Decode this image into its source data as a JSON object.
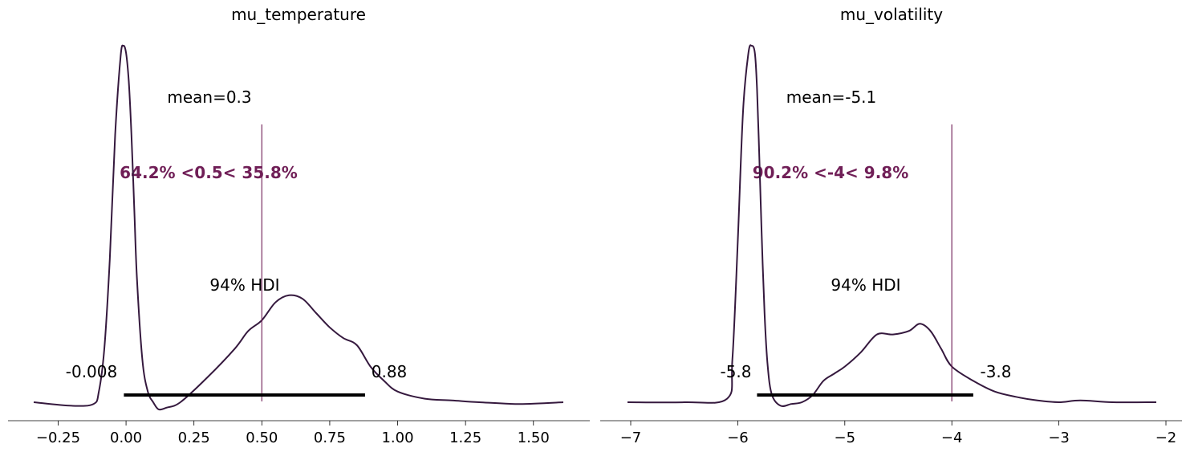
{
  "chart_data": [
    {
      "type": "line",
      "title": "mu_temperature",
      "xlim": [
        -0.34,
        1.61
      ],
      "ylim": [
        0,
        1
      ],
      "xticks": [
        -0.25,
        0.0,
        0.25,
        0.5,
        0.75,
        1.0,
        1.25,
        1.5
      ],
      "xtick_labels": [
        "−0.25",
        "0.00",
        "0.25",
        "0.50",
        "0.75",
        "1.00",
        "1.25",
        "1.50"
      ],
      "grid": false,
      "series": [
        {
          "x": [
            -0.34,
            -0.2,
            -0.12,
            -0.1,
            -0.08,
            -0.06,
            -0.04,
            -0.02,
            -0.01,
            0.0,
            0.01,
            0.02,
            0.03,
            0.04,
            0.06,
            0.08,
            0.1,
            0.12,
            0.15,
            0.2,
            0.3,
            0.4,
            0.45,
            0.5,
            0.55,
            0.6,
            0.65,
            0.7,
            0.75,
            0.8,
            0.85,
            0.9,
            0.95,
            1.0,
            1.1,
            1.2,
            1.3,
            1.45,
            1.61
          ],
          "y": [
            0.0,
            -0.01,
            -0.005,
            0.03,
            0.15,
            0.4,
            0.75,
            0.97,
            1.0,
            0.98,
            0.9,
            0.75,
            0.55,
            0.35,
            0.12,
            0.03,
            0.0,
            -0.02,
            -0.015,
            0.0,
            0.07,
            0.15,
            0.2,
            0.23,
            0.28,
            0.3,
            0.29,
            0.25,
            0.21,
            0.18,
            0.16,
            0.1,
            0.06,
            0.03,
            0.01,
            0.005,
            0.0,
            -0.005,
            0.0
          ]
        }
      ],
      "hdi_label": "94% HDI",
      "hdi": [
        -0.008,
        0.88
      ],
      "hdi_low_label": "-0.008",
      "hdi_high_label": "0.88",
      "mean_label": "mean=0.3",
      "ref_val": 0.5,
      "ref_label": "64.2% <0.5< 35.8%",
      "line_color": "#35193e",
      "ref_color": "#701f57"
    },
    {
      "type": "line",
      "title": "mu_volatility",
      "xlim": [
        -7.03,
        -2.09
      ],
      "ylim": [
        0,
        1
      ],
      "xticks": [
        -7,
        -6,
        -5,
        -4,
        -3,
        -2
      ],
      "xtick_labels": [
        "−7",
        "−6",
        "−5",
        "−4",
        "−3",
        "−2"
      ],
      "grid": false,
      "series": [
        {
          "x": [
            -7.03,
            -6.5,
            -6.1,
            -6.05,
            -6.0,
            -5.95,
            -5.9,
            -5.87,
            -5.84,
            -5.82,
            -5.8,
            -5.78,
            -5.75,
            -5.72,
            -5.68,
            -5.6,
            -5.5,
            -5.4,
            -5.3,
            -5.2,
            -5.1,
            -5.0,
            -4.85,
            -4.7,
            -4.55,
            -4.4,
            -4.3,
            -4.2,
            -4.1,
            -4.0,
            -3.8,
            -3.6,
            -3.4,
            -3.2,
            -3.0,
            -2.8,
            -2.5,
            -2.09
          ],
          "y": [
            0.0,
            0.0,
            0.01,
            0.12,
            0.45,
            0.82,
            0.98,
            1.0,
            0.98,
            0.88,
            0.7,
            0.5,
            0.25,
            0.1,
            0.02,
            -0.01,
            -0.005,
            0.0,
            0.02,
            0.06,
            0.08,
            0.1,
            0.14,
            0.19,
            0.19,
            0.2,
            0.22,
            0.2,
            0.15,
            0.1,
            0.06,
            0.03,
            0.015,
            0.005,
            0.0,
            0.005,
            0.0,
            0.0
          ]
        }
      ],
      "hdi_label": "94% HDI",
      "hdi": [
        -5.82,
        -3.8
      ],
      "hdi_low_label": "-5.8",
      "hdi_high_label": "-3.8",
      "mean_label": "mean=-5.1",
      "ref_val": -4,
      "ref_label": "90.2% <-4< 9.8%",
      "line_color": "#35193e",
      "ref_color": "#701f57"
    }
  ]
}
